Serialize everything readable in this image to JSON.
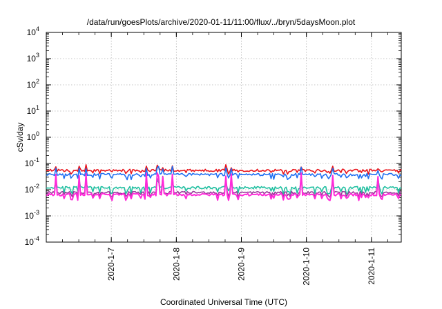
{
  "chart_data": {
    "type": "line",
    "title": "/data/run/goesPlots/archive/2020-01-11/11:00/flux/../bryn/5daysMoon.plot",
    "xlabel": "Coordinated Universal Time (UTC)",
    "ylabel": "cSv/day",
    "x_range": [
      "2020-01-06 00:00",
      "2020-01-11 11:00"
    ],
    "x_ticks": [
      "2020-1-7",
      "2020-1-8",
      "2020-1-9",
      "2020-1-10",
      "2020-1-11"
    ],
    "y_scale": "log",
    "ylim": [
      0.0001,
      10000
    ],
    "y_ticks": [
      {
        "base": "10",
        "exp": "-4"
      },
      {
        "base": "10",
        "exp": "-3"
      },
      {
        "base": "10",
        "exp": "-2"
      },
      {
        "base": "10",
        "exp": "-1"
      },
      {
        "base": "10",
        "exp": "0"
      },
      {
        "base": "10",
        "exp": "1"
      },
      {
        "base": "10",
        "exp": "2"
      },
      {
        "base": "10",
        "exp": "3"
      },
      {
        "base": "10",
        "exp": "4"
      }
    ],
    "grid": true,
    "legend": "none",
    "series": [
      {
        "color": "#e8141b",
        "base": 0.055,
        "dip": 0.045,
        "spike": 0.085
      },
      {
        "color": "#1f6ff2",
        "base": 0.038,
        "dip": 0.028,
        "spike": 0.07
      },
      {
        "color": "#1fbfa0",
        "base": 0.012,
        "dip": 0.008,
        "spike": 0.025
      },
      {
        "color": "#9a3b9a",
        "base": 0.0078,
        "dip": 0.006,
        "spike": 0.03
      },
      {
        "color": "#ff2ad9",
        "base": 0.0065,
        "dip": 0.0045,
        "spike": 0.04
      }
    ]
  }
}
